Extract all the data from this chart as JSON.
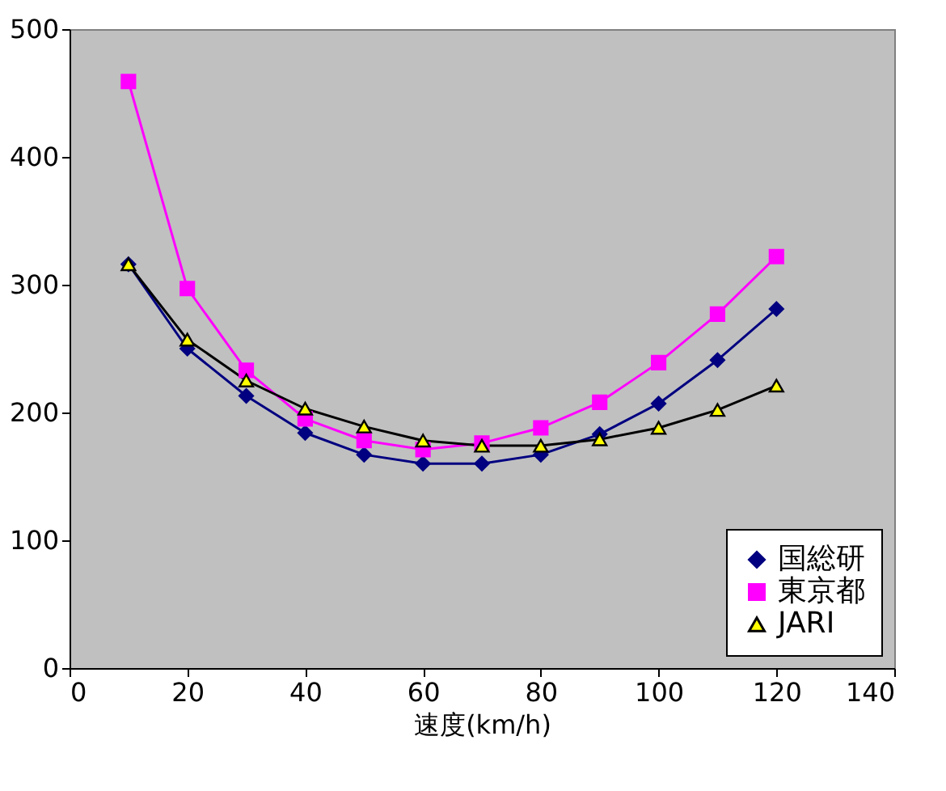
{
  "chart_data": {
    "type": "line",
    "xlabel": "速度(km/h)",
    "x": [
      10,
      20,
      30,
      40,
      50,
      60,
      70,
      80,
      90,
      100,
      110,
      120
    ],
    "series": [
      {
        "name": "国総研",
        "color": "#000080",
        "marker": "diamond",
        "values": [
          316,
          250,
          213,
          184,
          167,
          160,
          160,
          167,
          183,
          207,
          241,
          281
        ]
      },
      {
        "name": "東京都",
        "color": "#ff00ff",
        "marker": "square",
        "values": [
          459,
          297,
          233,
          195,
          178,
          171,
          176,
          188,
          208,
          239,
          277,
          322
        ]
      },
      {
        "name": "JARI",
        "color": "#000000",
        "marker": "triangle",
        "values": [
          316,
          257,
          225,
          203,
          189,
          178,
          174,
          174,
          179,
          188,
          202,
          221
        ]
      }
    ],
    "xlim": [
      0,
      140
    ],
    "xticks": [
      0,
      20,
      40,
      60,
      80,
      100,
      120,
      140
    ],
    "ylim": [
      0,
      500
    ],
    "yticks": [
      0,
      100,
      200,
      300,
      400,
      500
    ],
    "grid": false,
    "legend": "bottom right"
  }
}
